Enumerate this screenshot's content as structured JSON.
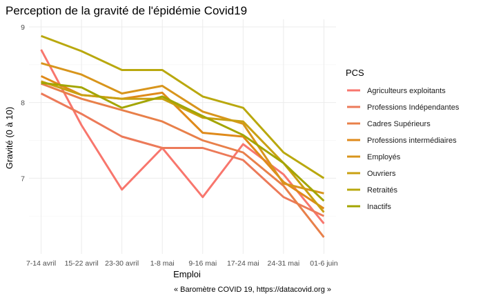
{
  "chart_data": {
    "type": "line",
    "title": "Perception de la gravité de l'épidémie Covid19",
    "xlabel": "Emploi",
    "ylabel": "Gravité (0 à 10)",
    "caption": "« Baromètre COVID 19, https://datacovid.org »",
    "categories": [
      "7-14 avril",
      "15-22 avril",
      "23-30 avril",
      "1-8 mai",
      "9-16 mai",
      "17-24 mai",
      "24-31 mai",
      "01-6 juin"
    ],
    "ylim": [
      6.0,
      9.1
    ],
    "yticks": [
      7,
      8,
      9
    ],
    "grid": true,
    "legend_title": "PCS",
    "legend_position": "right",
    "series": [
      {
        "name": "Agriculteurs exploitants",
        "color": "#F8766D",
        "values": [
          8.7,
          7.7,
          6.85,
          7.4,
          6.75,
          7.45,
          7.05,
          6.4
        ]
      },
      {
        "name": "Professions Indépendantes",
        "color": "#EC7A59",
        "values": [
          8.12,
          7.85,
          7.55,
          7.4,
          7.4,
          7.24,
          6.75,
          6.5
        ]
      },
      {
        "name": "Cadres Supérieurs",
        "color": "#E8804A",
        "values": [
          8.25,
          8.05,
          7.9,
          7.75,
          7.5,
          7.34,
          6.9,
          6.22
        ]
      },
      {
        "name": "Professions intermédiaires",
        "color": "#DF8A1A",
        "values": [
          8.35,
          8.1,
          8.05,
          8.13,
          7.6,
          7.55,
          6.95,
          6.6
        ]
      },
      {
        "name": "Employés",
        "color": "#D8951C",
        "values": [
          8.52,
          8.37,
          8.12,
          8.22,
          7.88,
          7.72,
          6.93,
          6.8
        ]
      },
      {
        "name": "Ouvriers",
        "color": "#C9A012",
        "values": [
          8.28,
          8.1,
          8.05,
          8.05,
          7.8,
          7.75,
          7.2,
          6.55
        ]
      },
      {
        "name": "Retraités",
        "color": "#B9A80E",
        "values": [
          8.88,
          8.68,
          8.43,
          8.43,
          8.08,
          7.93,
          7.34,
          7.0
        ]
      },
      {
        "name": "Inactifs",
        "color": "#A3A500",
        "values": [
          8.26,
          8.2,
          7.93,
          8.08,
          7.82,
          7.57,
          7.2,
          6.7
        ]
      }
    ]
  }
}
